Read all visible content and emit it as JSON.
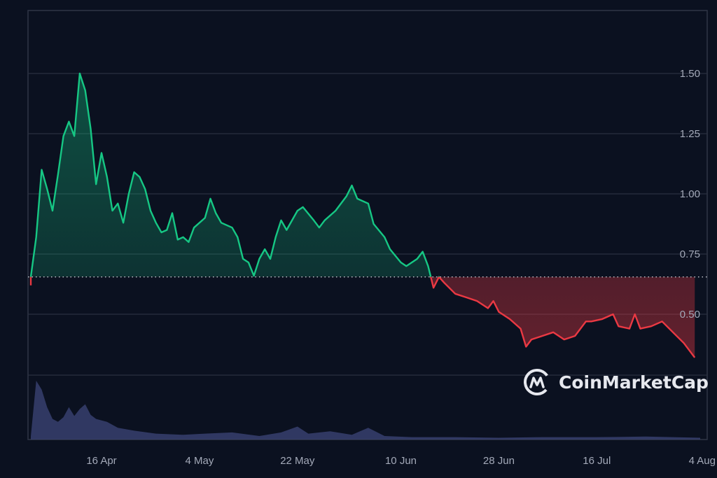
{
  "chart_data": {
    "type": "line",
    "title": "",
    "xlabel": "",
    "ylabel": "",
    "ylim": [
      0.25,
      1.72
    ],
    "yticks": [
      "1.50",
      "1.25",
      "1.00",
      "0.75",
      "0.50"
    ],
    "ytick_values": [
      1.5,
      1.25,
      1.0,
      0.75,
      0.5
    ],
    "xticks": [
      "16 Apr",
      "4 May",
      "22 May",
      "10 Jun",
      "28 Jun",
      "16 Jul",
      "4 Aug"
    ],
    "grid": true,
    "baseline": 0.655,
    "colors": {
      "above": "#16c784",
      "below": "#ea3943",
      "volume": "#3a4273",
      "grid": "#2a3040",
      "background": "#0b1120"
    },
    "series": [
      {
        "points": [
          [
            "3 Apr",
            0.62
          ],
          [
            "3 Apr",
            0.655
          ],
          [
            "4 Apr",
            0.82
          ],
          [
            "5 Apr",
            1.1
          ],
          [
            "6 Apr",
            1.02
          ],
          [
            "7 Apr",
            0.93
          ],
          [
            "8 Apr",
            1.08
          ],
          [
            "9 Apr",
            1.24
          ],
          [
            "10 Apr",
            1.3
          ],
          [
            "11 Apr",
            1.24
          ],
          [
            "12 Apr",
            1.5
          ],
          [
            "13 Apr",
            1.43
          ],
          [
            "14 Apr",
            1.27
          ],
          [
            "15 Apr",
            1.04
          ],
          [
            "16 Apr",
            1.17
          ],
          [
            "17 Apr",
            1.07
          ],
          [
            "18 Apr",
            0.93
          ],
          [
            "19 Apr",
            0.96
          ],
          [
            "20 Apr",
            0.88
          ],
          [
            "21 Apr",
            1.0
          ],
          [
            "22 Apr",
            1.09
          ],
          [
            "23 Apr",
            1.07
          ],
          [
            "24 Apr",
            1.02
          ],
          [
            "25 Apr",
            0.93
          ],
          [
            "26 Apr",
            0.88
          ],
          [
            "27 Apr",
            0.84
          ],
          [
            "28 Apr",
            0.85
          ],
          [
            "29 Apr",
            0.92
          ],
          [
            "30 Apr",
            0.81
          ],
          [
            "1 May",
            0.82
          ],
          [
            "2 May",
            0.8
          ],
          [
            "3 May",
            0.86
          ],
          [
            "5 May",
            0.9
          ],
          [
            "6 May",
            0.98
          ],
          [
            "7 May",
            0.92
          ],
          [
            "8 May",
            0.88
          ],
          [
            "10 May",
            0.86
          ],
          [
            "11 May",
            0.82
          ],
          [
            "12 May",
            0.73
          ],
          [
            "13 May",
            0.715
          ],
          [
            "14 May",
            0.66
          ],
          [
            "15 May",
            0.73
          ],
          [
            "16 May",
            0.77
          ],
          [
            "17 May",
            0.73
          ],
          [
            "18 May",
            0.82
          ],
          [
            "19 May",
            0.89
          ],
          [
            "20 May",
            0.85
          ],
          [
            "22 May",
            0.93
          ],
          [
            "23 May",
            0.945
          ],
          [
            "25 May",
            0.89
          ],
          [
            "26 May",
            0.86
          ],
          [
            "27 May",
            0.89
          ],
          [
            "29 May",
            0.93
          ],
          [
            "31 May",
            0.99
          ],
          [
            "1 Jun",
            1.035
          ],
          [
            "2 Jun",
            0.98
          ],
          [
            "4 Jun",
            0.96
          ],
          [
            "5 Jun",
            0.875
          ],
          [
            "7 Jun",
            0.82
          ],
          [
            "8 Jun",
            0.77
          ],
          [
            "10 Jun",
            0.715
          ],
          [
            "11 Jun",
            0.7
          ],
          [
            "13 Jun",
            0.73
          ],
          [
            "14 Jun",
            0.76
          ],
          [
            "15 Jun",
            0.7
          ],
          [
            "16 Jun",
            0.61
          ],
          [
            "17 Jun",
            0.655
          ],
          [
            "18 Jun",
            0.63
          ],
          [
            "20 Jun",
            0.585
          ],
          [
            "22 Jun",
            0.57
          ],
          [
            "24 Jun",
            0.555
          ],
          [
            "26 Jun",
            0.525
          ],
          [
            "27 Jun",
            0.555
          ],
          [
            "28 Jun",
            0.51
          ],
          [
            "30 Jun",
            0.48
          ],
          [
            "2 Jul",
            0.44
          ],
          [
            "3 Jul",
            0.365
          ],
          [
            "4 Jul",
            0.395
          ],
          [
            "6 Jul",
            0.41
          ],
          [
            "8 Jul",
            0.425
          ],
          [
            "10 Jul",
            0.395
          ],
          [
            "12 Jul",
            0.41
          ],
          [
            "14 Jul",
            0.47
          ],
          [
            "15 Jul",
            0.47
          ],
          [
            "17 Jul",
            0.48
          ],
          [
            "19 Jul",
            0.5
          ],
          [
            "20 Jul",
            0.45
          ],
          [
            "22 Jul",
            0.44
          ],
          [
            "23 Jul",
            0.5
          ],
          [
            "24 Jul",
            0.44
          ],
          [
            "26 Jul",
            0.45
          ],
          [
            "28 Jul",
            0.47
          ],
          [
            "30 Jul",
            0.425
          ],
          [
            "1 Aug",
            0.38
          ],
          [
            "3 Aug",
            0.32
          ]
        ]
      }
    ],
    "volume": {
      "points": [
        [
          "3 Apr",
          0.05
        ],
        [
          "4 Apr",
          1.0
        ],
        [
          "5 Apr",
          0.85
        ],
        [
          "6 Apr",
          0.55
        ],
        [
          "7 Apr",
          0.35
        ],
        [
          "8 Apr",
          0.3
        ],
        [
          "9 Apr",
          0.38
        ],
        [
          "10 Apr",
          0.55
        ],
        [
          "11 Apr",
          0.4
        ],
        [
          "12 Apr",
          0.52
        ],
        [
          "13 Apr",
          0.6
        ],
        [
          "14 Apr",
          0.42
        ],
        [
          "15 Apr",
          0.35
        ],
        [
          "17 Apr",
          0.3
        ],
        [
          "19 Apr",
          0.2
        ],
        [
          "22 Apr",
          0.15
        ],
        [
          "26 Apr",
          0.1
        ],
        [
          "1 May",
          0.08
        ],
        [
          "5 May",
          0.1
        ],
        [
          "10 May",
          0.12
        ],
        [
          "15 May",
          0.06
        ],
        [
          "19 May",
          0.12
        ],
        [
          "22 May",
          0.22
        ],
        [
          "24 May",
          0.1
        ],
        [
          "28 May",
          0.14
        ],
        [
          "1 Jun",
          0.08
        ],
        [
          "4 Jun",
          0.2
        ],
        [
          "7 Jun",
          0.06
        ],
        [
          "12 Jun",
          0.04
        ],
        [
          "20 Jun",
          0.04
        ],
        [
          "28 Jun",
          0.03
        ],
        [
          "6 Jul",
          0.04
        ],
        [
          "16 Jul",
          0.04
        ],
        [
          "25 Jul",
          0.05
        ],
        [
          "4 Aug",
          0.03
        ]
      ]
    }
  },
  "watermark": {
    "brand": "CoinMarketCap"
  }
}
